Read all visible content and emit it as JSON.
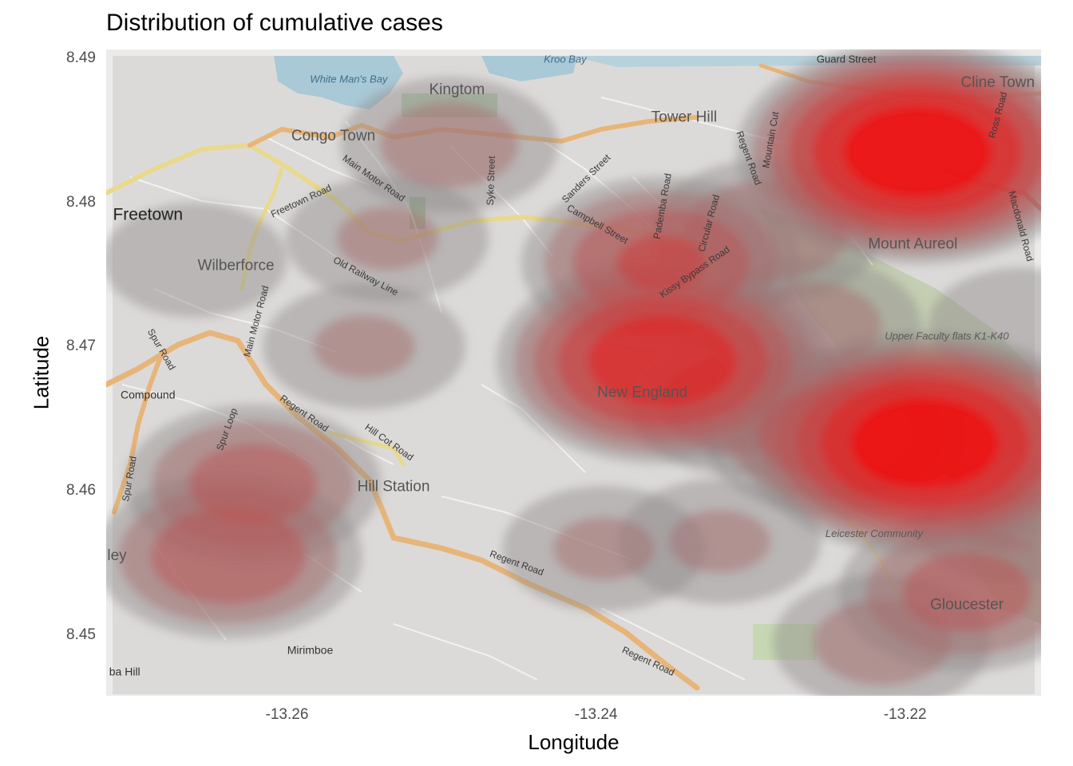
{
  "title": "Distribution of cumulative cases",
  "x_axis": {
    "title": "Longitude",
    "ticks": [
      -13.26,
      -13.24,
      -13.22
    ],
    "labels": [
      "-13.26",
      "-13.24",
      "-13.22"
    ]
  },
  "y_axis": {
    "title": "Latitude",
    "ticks": [
      8.49,
      8.48,
      8.47,
      8.46,
      8.45
    ],
    "labels": [
      "8.49",
      "8.48",
      "8.47",
      "8.46",
      "8.45"
    ]
  },
  "map": {
    "extent": {
      "lon_min": -13.2717,
      "lon_max": -13.2112,
      "lat_min": 8.4458,
      "lat_max": 8.4906
    },
    "place_labels": [
      {
        "text": "White Man's Bay",
        "lon": -13.256,
        "lat": 8.4883,
        "kind": "water"
      },
      {
        "text": "Kroo Bay",
        "lon": -13.242,
        "lat": 8.4897,
        "kind": "water"
      },
      {
        "text": "Guard Street",
        "lon": -13.2238,
        "lat": 8.4897,
        "kind": "street"
      },
      {
        "text": "Kingtom",
        "lon": -13.249,
        "lat": 8.4875,
        "kind": "place"
      },
      {
        "text": "Cline Town",
        "lon": -13.214,
        "lat": 8.488,
        "kind": "place"
      },
      {
        "text": "Tower Hill",
        "lon": -13.2343,
        "lat": 8.4856,
        "kind": "place"
      },
      {
        "text": "Congo Town",
        "lon": -13.257,
        "lat": 8.4843,
        "kind": "place"
      },
      {
        "text": "Freetown",
        "lon": -13.269,
        "lat": 8.4788,
        "kind": "city"
      },
      {
        "text": "Mount Aureol",
        "lon": -13.2195,
        "lat": 8.4768,
        "kind": "place"
      },
      {
        "text": "Wilberforce",
        "lon": -13.2633,
        "lat": 8.4753,
        "kind": "place"
      },
      {
        "text": "Upper Faculty flats K1-K40",
        "lon": -13.2173,
        "lat": 8.4705,
        "kind": "small"
      },
      {
        "text": "New England",
        "lon": -13.237,
        "lat": 8.4665,
        "kind": "place"
      },
      {
        "text": "Compound",
        "lon": -13.269,
        "lat": 8.4664,
        "kind": "small-black"
      },
      {
        "text": "Hill Station",
        "lon": -13.2531,
        "lat": 8.46,
        "kind": "place"
      },
      {
        "text": "Leicester Community",
        "lon": -13.222,
        "lat": 8.4568,
        "kind": "small"
      },
      {
        "text": "Gloucester",
        "lon": -13.216,
        "lat": 8.4518,
        "kind": "place"
      },
      {
        "text": "Mirimboe",
        "lon": -13.2585,
        "lat": 8.4487,
        "kind": "small-black"
      },
      {
        "text": "ley",
        "lon": -13.271,
        "lat": 8.4552,
        "kind": "place"
      },
      {
        "text": "ba Hill",
        "lon": -13.2705,
        "lat": 8.4472,
        "kind": "small-black"
      }
    ],
    "road_labels": [
      {
        "text": "Main Motor Road",
        "lon": -13.2545,
        "lat": 8.4815,
        "angle": 35
      },
      {
        "text": "Freetown Road",
        "lon": -13.259,
        "lat": 8.4799,
        "angle": -25
      },
      {
        "text": "Old Railway Line",
        "lon": -13.255,
        "lat": 8.4747,
        "angle": 28
      },
      {
        "text": "Main Motor Road",
        "lon": -13.2618,
        "lat": 8.4717,
        "angle": -75
      },
      {
        "text": "Spur Road",
        "lon": -13.2683,
        "lat": 8.4697,
        "angle": 60
      },
      {
        "text": "Spur Loop",
        "lon": -13.2637,
        "lat": 8.4642,
        "angle": -70
      },
      {
        "text": "Regent Road",
        "lon": -13.259,
        "lat": 8.4652,
        "angle": 35
      },
      {
        "text": "Hill Cot Road",
        "lon": -13.2535,
        "lat": 8.4632,
        "angle": 35
      },
      {
        "text": "Spur Road",
        "lon": -13.27,
        "lat": 8.4608,
        "angle": -80
      },
      {
        "text": "Regent Road",
        "lon": -13.2452,
        "lat": 8.4548,
        "angle": 20
      },
      {
        "text": "Regent Road",
        "lon": -13.2367,
        "lat": 8.448,
        "angle": 25
      },
      {
        "text": "Syke Street",
        "lon": -13.2466,
        "lat": 8.4815,
        "angle": -88
      },
      {
        "text": "Sanders Street",
        "lon": -13.2405,
        "lat": 8.4815,
        "angle": -45
      },
      {
        "text": "Pademba Road",
        "lon": -13.2355,
        "lat": 8.4797,
        "angle": -80
      },
      {
        "text": "Campbell Street",
        "lon": -13.24,
        "lat": 8.4783,
        "angle": 30
      },
      {
        "text": "Circular Road",
        "lon": -13.2325,
        "lat": 8.4785,
        "angle": -75
      },
      {
        "text": "Regent Road",
        "lon": -13.2303,
        "lat": 8.483,
        "angle": 70
      },
      {
        "text": "Mountain Cut",
        "lon": -13.2285,
        "lat": 8.4843,
        "angle": -80
      },
      {
        "text": "Ross Road",
        "lon": -13.2138,
        "lat": 8.486,
        "angle": -75
      },
      {
        "text": "Kissy Bypass Road",
        "lon": -13.2335,
        "lat": 8.475,
        "angle": -35
      },
      {
        "text": "Macdonald Road",
        "lon": -13.2127,
        "lat": 8.4783,
        "angle": 75
      }
    ]
  },
  "chart_data": {
    "type": "heatmap",
    "title": "Distribution of cumulative cases",
    "xlabel": "Longitude",
    "ylabel": "Latitude",
    "xlim": [
      -13.2717,
      -13.2112
    ],
    "ylim": [
      8.4458,
      8.4906
    ],
    "x_ticks": [
      -13.26,
      -13.24,
      -13.22
    ],
    "y_ticks": [
      8.49,
      8.48,
      8.47,
      8.46,
      8.45
    ],
    "gradient": {
      "low": "#8f8a8a",
      "high": "#ff0000"
    },
    "hotspots": [
      {
        "lon": -13.2192,
        "lat": 8.4835,
        "peak": 1.0
      },
      {
        "lon": -13.2187,
        "lat": 8.4633,
        "peak": 1.0
      },
      {
        "lon": -13.2357,
        "lat": 8.469,
        "peak": 0.85
      },
      {
        "lon": -13.2358,
        "lat": 8.4758,
        "peak": 0.6
      },
      {
        "lon": -13.2638,
        "lat": 8.4555,
        "peak": 0.55
      },
      {
        "lon": -13.2622,
        "lat": 8.4605,
        "peak": 0.5
      },
      {
        "lon": -13.216,
        "lat": 8.453,
        "peak": 0.5
      },
      {
        "lon": -13.226,
        "lat": 8.4715,
        "peak": 0.35
      },
      {
        "lon": -13.2245,
        "lat": 8.464,
        "peak": 0.55
      },
      {
        "lon": -13.2305,
        "lat": 8.466,
        "peak": 0.4
      },
      {
        "lon": -13.229,
        "lat": 8.478,
        "peak": 0.4
      },
      {
        "lon": -13.2535,
        "lat": 8.4775,
        "peak": 0.3
      },
      {
        "lon": -13.266,
        "lat": 8.476,
        "peak": 0.25
      },
      {
        "lon": -13.255,
        "lat": 8.47,
        "peak": 0.3
      },
      {
        "lon": -13.2495,
        "lat": 8.484,
        "peak": 0.35
      },
      {
        "lon": -13.2395,
        "lat": 8.456,
        "peak": 0.3
      },
      {
        "lon": -13.232,
        "lat": 8.4565,
        "peak": 0.3
      },
      {
        "lon": -13.2215,
        "lat": 8.4495,
        "peak": 0.35
      },
      {
        "lon": -13.2125,
        "lat": 8.4715,
        "peak": 0.25
      },
      {
        "lon": -13.213,
        "lat": 8.458,
        "peak": 0.3
      }
    ]
  }
}
